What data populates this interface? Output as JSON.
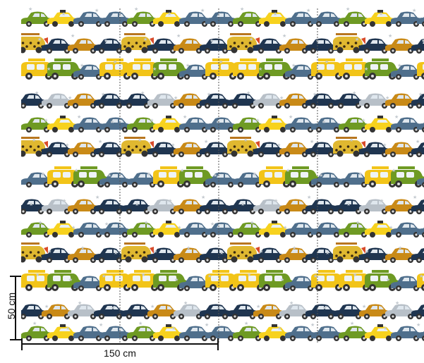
{
  "ruler": {
    "vertical_label": "50 cm",
    "horizontal_label": "150 cm"
  },
  "colors": {
    "car_yellow": "#f2c418",
    "car_green": "#6e9a23",
    "car_navy": "#1f3550",
    "car_slate": "#4f6f8c",
    "car_orange": "#c98a17",
    "car_grey": "#b8c0c8",
    "taxi_yellow": "#f7d21e",
    "leopard": "#e0b830",
    "guide_line": "#555555",
    "ruler": "#111111"
  }
}
